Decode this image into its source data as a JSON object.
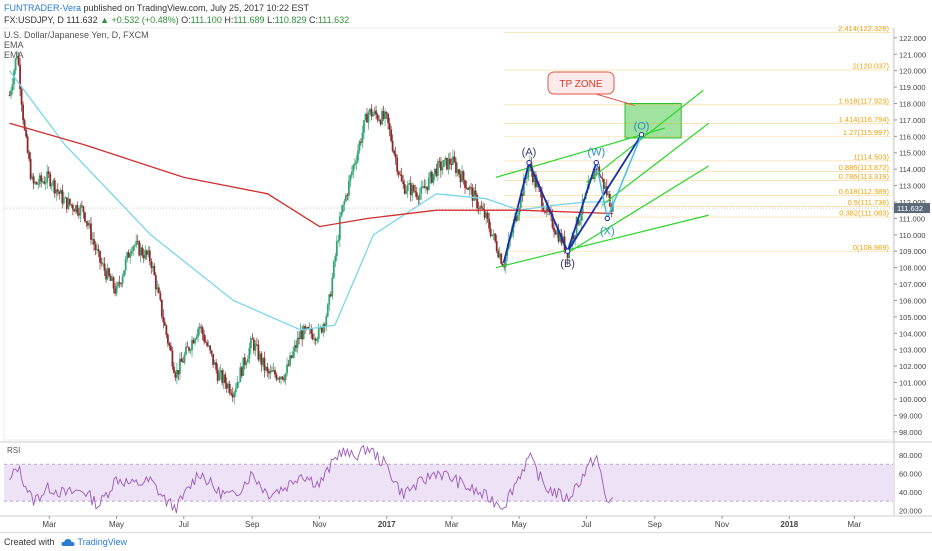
{
  "header": {
    "author": "FUNTRADER-Vera",
    "published": "published on TradingView.com, July 25, 2017 10:22 EST",
    "symbol": "FX:USDJPY, D",
    "last": "111.632",
    "change": "+0.532 (+0.48%)",
    "o_label": "O:",
    "o": "111.100",
    "h_label": "H:",
    "h": "111.689",
    "l_label": "L:",
    "l": "110.829",
    "c_label": "C:",
    "c": "111.632",
    "instrument": "U.S. Dollar/Japanese Yen, D, FXCM",
    "ema1": "EMA",
    "ema2": "EMA"
  },
  "footer": {
    "created_with": "Created with",
    "brand": "TradingView"
  },
  "colors": {
    "up": "#33a573",
    "down": "#8b2a2a",
    "ema_fast": "#7ad6ea",
    "ema_slow": "#d32f2f",
    "fib": "#f0a30a",
    "channel": "#2cd62c",
    "pattern": "#1a2ea8",
    "projection": "#3fc0f0",
    "tp_zone": "#2cc12c",
    "rsi": "#9b59b6",
    "rsi_band": "#e6d6f2"
  },
  "chart_data": {
    "type": "candlestick",
    "symbol": "FX:USDJPY",
    "timeframe": "D",
    "ylim": [
      97.5,
      122.6
    ],
    "y_ticks": [
      "122.000",
      "121.000",
      "120.000",
      "119.000",
      "118.000",
      "117.000",
      "116.000",
      "115.000",
      "114.000",
      "113.000",
      "112.000",
      "111.000",
      "110.000",
      "109.000",
      "108.000",
      "107.000",
      "106.000",
      "105.000",
      "104.000",
      "103.000",
      "102.000",
      "101.000",
      "100.000",
      "99.000",
      "98.000"
    ],
    "x_ticks": [
      "Mar",
      "May",
      "Jul",
      "Sep",
      "Nov",
      "2017",
      "Mar",
      "May",
      "Jul",
      "Sep",
      "Nov",
      "2018",
      "Mar"
    ],
    "last_price_label": "111.632",
    "approx_closes_path": [
      [
        "2016-01-25",
        118.5
      ],
      [
        "2016-02-01",
        121.2
      ],
      [
        "2016-02-08",
        116.0
      ],
      [
        "2016-02-15",
        113.0
      ],
      [
        "2016-03-01",
        113.5
      ],
      [
        "2016-03-15",
        112.0
      ],
      [
        "2016-04-01",
        111.5
      ],
      [
        "2016-04-15",
        108.5
      ],
      [
        "2016-05-01",
        106.5
      ],
      [
        "2016-05-15",
        109.5
      ],
      [
        "2016-06-01",
        108.5
      ],
      [
        "2016-06-15",
        104.0
      ],
      [
        "2016-06-24",
        101.5
      ],
      [
        "2016-07-15",
        104.5
      ],
      [
        "2016-08-01",
        101.5
      ],
      [
        "2016-08-15",
        100.5
      ],
      [
        "2016-09-01",
        103.5
      ],
      [
        "2016-09-15",
        101.5
      ],
      [
        "2016-10-01",
        101.5
      ],
      [
        "2016-10-15",
        104.0
      ],
      [
        "2016-11-01",
        104.0
      ],
      [
        "2016-11-09",
        105.5
      ],
      [
        "2016-11-20",
        111.0
      ],
      [
        "2016-12-01",
        114.0
      ],
      [
        "2016-12-15",
        117.5
      ],
      [
        "2017-01-01",
        117.0
      ],
      [
        "2017-01-15",
        113.0
      ],
      [
        "2017-02-01",
        112.5
      ],
      [
        "2017-02-15",
        114.0
      ],
      [
        "2017-03-01",
        114.5
      ],
      [
        "2017-03-15",
        113.0
      ],
      [
        "2017-04-01",
        111.0
      ],
      [
        "2017-04-17",
        108.2
      ],
      [
        "2017-05-10",
        114.3
      ],
      [
        "2017-05-25",
        111.5
      ],
      [
        "2017-06-14",
        109.0
      ],
      [
        "2017-07-10",
        114.2
      ],
      [
        "2017-07-25",
        111.6
      ]
    ],
    "ema_fast_path": [
      [
        "2016-01-25",
        120.0
      ],
      [
        "2016-03-15",
        115.5
      ],
      [
        "2016-06-01",
        110.0
      ],
      [
        "2016-08-15",
        106.0
      ],
      [
        "2016-10-15",
        104.2
      ],
      [
        "2016-11-15",
        104.5
      ],
      [
        "2016-12-20",
        110.0
      ],
      [
        "2017-02-15",
        112.5
      ],
      [
        "2017-04-01",
        112.2
      ],
      [
        "2017-05-01",
        111.5
      ],
      [
        "2017-06-01",
        111.8
      ],
      [
        "2017-07-01",
        112.0
      ],
      [
        "2017-07-25",
        112.0
      ]
    ],
    "ema_slow_path": [
      [
        "2016-01-25",
        116.8
      ],
      [
        "2016-04-01",
        115.5
      ],
      [
        "2016-07-01",
        113.5
      ],
      [
        "2016-09-15",
        112.5
      ],
      [
        "2016-11-01",
        110.5
      ],
      [
        "2016-12-15",
        111.0
      ],
      [
        "2017-02-15",
        111.5
      ],
      [
        "2017-05-01",
        111.5
      ],
      [
        "2017-07-25",
        111.3
      ]
    ],
    "fib_levels": [
      {
        "label": "2.414(122.328)",
        "y": 122.328
      },
      {
        "label": "2(120.037)",
        "y": 120.037
      },
      {
        "label": "1.618(117.923)",
        "y": 117.923
      },
      {
        "label": "1.414(116.794)",
        "y": 116.794
      },
      {
        "label": "1.27(115.997)",
        "y": 115.997
      },
      {
        "label": "1(114.503)",
        "y": 114.503
      },
      {
        "label": "0.886(113.872)",
        "y": 113.872
      },
      {
        "label": "0.786(113.319)",
        "y": 113.319
      },
      {
        "label": "0.618(112.389)",
        "y": 112.389
      },
      {
        "label": "0.5(111.736)",
        "y": 111.736
      },
      {
        "label": "0.382(111.083)",
        "y": 111.083
      },
      {
        "label": "0(108.969)",
        "y": 108.969
      }
    ],
    "pattern_points": [
      {
        "label": "(A)",
        "date": "2017-05-10",
        "y": 114.4
      },
      {
        "label": "(B)",
        "date": "2017-06-14",
        "y": 109.0
      },
      {
        "label": "(W)",
        "date": "2017-07-10",
        "y": 114.4
      },
      {
        "label": "(X)",
        "date": "2017-07-20",
        "y": 111.0
      },
      {
        "label": "(O)",
        "date": "2017-08-20",
        "y": 116.1
      }
    ],
    "tp_zone": {
      "label": "TP ZONE",
      "date_start": "2017-08-05",
      "date_end": "2017-09-25",
      "y_top": 118.0,
      "y_bottom": 115.9
    },
    "rsi": {
      "label": "RSI",
      "ylim": [
        15,
        92
      ],
      "ticks": [
        "80.000",
        "60.000",
        "40.000",
        "20.000"
      ],
      "band": [
        30,
        70
      ],
      "approx_path": [
        [
          "2016-01-25",
          50
        ],
        [
          "2016-02-01",
          68
        ],
        [
          "2016-02-15",
          30
        ],
        [
          "2016-03-01",
          45
        ],
        [
          "2016-03-15",
          38
        ],
        [
          "2016-04-01",
          42
        ],
        [
          "2016-04-15",
          25
        ],
        [
          "2016-05-01",
          55
        ],
        [
          "2016-05-15",
          48
        ],
        [
          "2016-06-01",
          52
        ],
        [
          "2016-06-15",
          30
        ],
        [
          "2016-06-24",
          22
        ],
        [
          "2016-07-15",
          62
        ],
        [
          "2016-08-01",
          40
        ],
        [
          "2016-08-15",
          35
        ],
        [
          "2016-09-01",
          60
        ],
        [
          "2016-09-15",
          38
        ],
        [
          "2016-10-01",
          45
        ],
        [
          "2016-10-15",
          60
        ],
        [
          "2016-11-01",
          48
        ],
        [
          "2016-11-20",
          85
        ],
        [
          "2016-12-01",
          78
        ],
        [
          "2016-12-15",
          88
        ],
        [
          "2017-01-01",
          68
        ],
        [
          "2017-01-15",
          38
        ],
        [
          "2017-02-01",
          50
        ],
        [
          "2017-02-15",
          62
        ],
        [
          "2017-03-01",
          55
        ],
        [
          "2017-03-15",
          45
        ],
        [
          "2017-04-01",
          35
        ],
        [
          "2017-04-17",
          25
        ],
        [
          "2017-05-10",
          78
        ],
        [
          "2017-05-25",
          45
        ],
        [
          "2017-06-14",
          32
        ],
        [
          "2017-07-10",
          80
        ],
        [
          "2017-07-20",
          25
        ],
        [
          "2017-07-25",
          38
        ]
      ]
    }
  }
}
